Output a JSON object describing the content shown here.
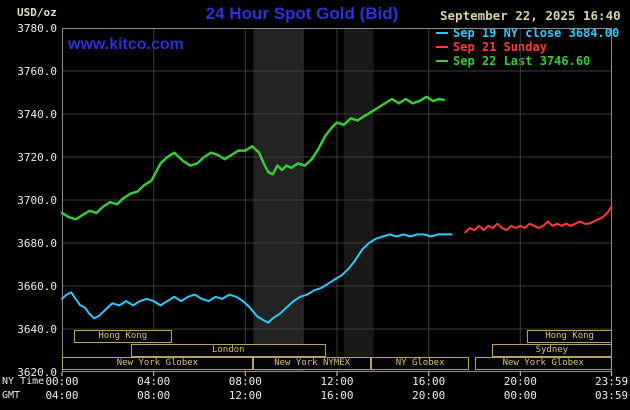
{
  "colors": {
    "background": "#000000",
    "title_blue": "#2b32d8",
    "watermark_blue": "#2b32d8",
    "datetime_tan": "#d9d0a4",
    "axis_text": "#ececec",
    "grid": "#3d3d3d",
    "frame": "#8c8c8c",
    "session_border": "#b4a45c",
    "session_text": "#d6c575",
    "series_cyan": "#2fc8ff",
    "series_red": "#ff3a3a",
    "series_green": "#35cc35"
  },
  "header": {
    "units_label": "USD/oz",
    "title": "24 Hour Spot Gold (Bid)",
    "datetime": "September 22, 2025 16:40",
    "watermark": "www.kitco.com"
  },
  "legend": [
    {
      "label": "Sep 19 NY close 3684.00",
      "color": "#2fc8ff"
    },
    {
      "label": "Sep 21 Sunday",
      "color": "#ff3a3a"
    },
    {
      "label": "Sep 22 Last 3746.60",
      "color": "#35cc35"
    }
  ],
  "axes": {
    "y_tick_labels": [
      "3780.0",
      "3760.0",
      "3740.0",
      "3720.0",
      "3700.0",
      "3680.0",
      "3660.0",
      "3640.0",
      "3620.0"
    ],
    "ny_time_caption": "NY Time",
    "gmt_caption": "GMT",
    "tick_hours": [
      0,
      4,
      8,
      12,
      16,
      20,
      23.983
    ],
    "ny_tick_labels": [
      "00:00",
      "04:00",
      "08:00",
      "12:00",
      "16:00",
      "20:00",
      "23:59"
    ],
    "gmt_tick_labels": [
      "04:00",
      "08:00",
      "12:00",
      "16:00",
      "20:00",
      "00:00",
      "03:59"
    ]
  },
  "sessions": [
    {
      "row": 0,
      "label": "Hong Kong",
      "start": 0.5,
      "end": 4.8
    },
    {
      "row": 0,
      "label": "Hong Kong",
      "start": 20.3,
      "end": 24
    },
    {
      "row": 1,
      "label": "London",
      "start": 3.0,
      "end": 11.5
    },
    {
      "row": 1,
      "label": "Sydney",
      "start": 18.75,
      "end": 24
    },
    {
      "row": 2,
      "label": "New York Globex",
      "start": 0,
      "end": 8.33
    },
    {
      "row": 2,
      "label": "New York NYMEX",
      "start": 8.33,
      "end": 13.5
    },
    {
      "row": 2,
      "label": "NY Globex",
      "start": 13.5,
      "end": 17.75
    },
    {
      "row": 2,
      "label": "New York Globex",
      "start": 18.0,
      "end": 24
    }
  ],
  "chart_data": {
    "type": "line",
    "title": "24 Hour Spot Gold (Bid)",
    "xlabel": "NY Time (hours)",
    "ylabel": "USD/oz",
    "xlim": [
      0,
      24
    ],
    "ylim": [
      3620,
      3780
    ],
    "x_grid_step": 4,
    "y_grid_step": 20,
    "grid": true,
    "legend_position": "top-right",
    "last_values": {
      "sep19_ny_close": 3684.0,
      "sep22_last": 3746.6
    },
    "shaded_bands": [
      {
        "start": 8.35,
        "end": 10.55,
        "color": "#232323"
      },
      {
        "start": 12.3,
        "end": 13.6,
        "color": "#181818"
      }
    ],
    "series": [
      {
        "name": "Sep 19 NY close",
        "color": "#2fc8ff",
        "width": 2,
        "points": [
          [
            0,
            3654
          ],
          [
            0.2,
            3656
          ],
          [
            0.4,
            3657
          ],
          [
            0.6,
            3654
          ],
          [
            0.8,
            3651
          ],
          [
            1,
            3650
          ],
          [
            1.2,
            3647
          ],
          [
            1.4,
            3645
          ],
          [
            1.6,
            3646
          ],
          [
            1.8,
            3648
          ],
          [
            2,
            3650
          ],
          [
            2.2,
            3652
          ],
          [
            2.5,
            3651
          ],
          [
            2.8,
            3653
          ],
          [
            3.1,
            3651
          ],
          [
            3.4,
            3653
          ],
          [
            3.7,
            3654
          ],
          [
            4,
            3653
          ],
          [
            4.3,
            3651
          ],
          [
            4.6,
            3653
          ],
          [
            4.9,
            3655
          ],
          [
            5.2,
            3653
          ],
          [
            5.5,
            3655
          ],
          [
            5.8,
            3656
          ],
          [
            6.1,
            3654
          ],
          [
            6.4,
            3653
          ],
          [
            6.7,
            3655
          ],
          [
            7,
            3654
          ],
          [
            7.3,
            3656
          ],
          [
            7.6,
            3655
          ],
          [
            7.9,
            3653
          ],
          [
            8.2,
            3650
          ],
          [
            8.5,
            3646
          ],
          [
            8.8,
            3644
          ],
          [
            9,
            3643
          ],
          [
            9.2,
            3645
          ],
          [
            9.5,
            3647
          ],
          [
            9.8,
            3650
          ],
          [
            10.1,
            3653
          ],
          [
            10.4,
            3655
          ],
          [
            10.7,
            3656
          ],
          [
            11,
            3658
          ],
          [
            11.3,
            3659
          ],
          [
            11.6,
            3661
          ],
          [
            11.9,
            3663
          ],
          [
            12.2,
            3665
          ],
          [
            12.5,
            3668
          ],
          [
            12.8,
            3672
          ],
          [
            13.1,
            3677
          ],
          [
            13.4,
            3680
          ],
          [
            13.7,
            3682
          ],
          [
            14,
            3683
          ],
          [
            14.3,
            3684
          ],
          [
            14.6,
            3683
          ],
          [
            14.9,
            3684
          ],
          [
            15.2,
            3683
          ],
          [
            15.5,
            3684
          ],
          [
            15.8,
            3684
          ],
          [
            16.1,
            3683
          ],
          [
            16.4,
            3684
          ],
          [
            16.7,
            3684
          ],
          [
            17,
            3684
          ]
        ]
      },
      {
        "name": "Sep 21 Sunday",
        "color": "#ff3a3a",
        "width": 2,
        "points": [
          [
            17.6,
            3685
          ],
          [
            17.8,
            3687
          ],
          [
            18,
            3686
          ],
          [
            18.2,
            3688
          ],
          [
            18.4,
            3686
          ],
          [
            18.6,
            3688
          ],
          [
            18.8,
            3687
          ],
          [
            19,
            3689
          ],
          [
            19.2,
            3687
          ],
          [
            19.4,
            3686
          ],
          [
            19.6,
            3688
          ],
          [
            19.8,
            3687
          ],
          [
            20,
            3688
          ],
          [
            20.2,
            3687
          ],
          [
            20.4,
            3689
          ],
          [
            20.6,
            3688
          ],
          [
            20.8,
            3687
          ],
          [
            21,
            3688
          ],
          [
            21.2,
            3690
          ],
          [
            21.4,
            3688
          ],
          [
            21.6,
            3689
          ],
          [
            21.8,
            3688
          ],
          [
            22,
            3689
          ],
          [
            22.2,
            3688
          ],
          [
            22.4,
            3689
          ],
          [
            22.6,
            3690
          ],
          [
            22.8,
            3689
          ],
          [
            23,
            3689
          ],
          [
            23.2,
            3690
          ],
          [
            23.4,
            3691
          ],
          [
            23.6,
            3692
          ],
          [
            23.8,
            3694
          ],
          [
            23.98,
            3697
          ]
        ]
      },
      {
        "name": "Sep 22",
        "color": "#35cc35",
        "width": 2.5,
        "points": [
          [
            0,
            3694
          ],
          [
            0.3,
            3692
          ],
          [
            0.6,
            3691
          ],
          [
            0.9,
            3693
          ],
          [
            1.2,
            3695
          ],
          [
            1.5,
            3694
          ],
          [
            1.8,
            3697
          ],
          [
            2.1,
            3699
          ],
          [
            2.4,
            3698
          ],
          [
            2.7,
            3701
          ],
          [
            3,
            3703
          ],
          [
            3.3,
            3704
          ],
          [
            3.6,
            3707
          ],
          [
            3.9,
            3709
          ],
          [
            4.1,
            3713
          ],
          [
            4.3,
            3717
          ],
          [
            4.6,
            3720
          ],
          [
            4.9,
            3722
          ],
          [
            5.1,
            3720
          ],
          [
            5.3,
            3718
          ],
          [
            5.6,
            3716
          ],
          [
            5.9,
            3717
          ],
          [
            6.2,
            3720
          ],
          [
            6.5,
            3722
          ],
          [
            6.8,
            3721
          ],
          [
            7.1,
            3719
          ],
          [
            7.4,
            3721
          ],
          [
            7.7,
            3723
          ],
          [
            8,
            3723
          ],
          [
            8.3,
            3725
          ],
          [
            8.6,
            3722
          ],
          [
            8.8,
            3717
          ],
          [
            9,
            3713
          ],
          [
            9.2,
            3712
          ],
          [
            9.4,
            3716
          ],
          [
            9.6,
            3714
          ],
          [
            9.8,
            3716
          ],
          [
            10,
            3715
          ],
          [
            10.3,
            3717
          ],
          [
            10.6,
            3716
          ],
          [
            10.9,
            3719
          ],
          [
            11.2,
            3724
          ],
          [
            11.5,
            3730
          ],
          [
            11.8,
            3734
          ],
          [
            12,
            3736
          ],
          [
            12.3,
            3735
          ],
          [
            12.6,
            3738
          ],
          [
            12.9,
            3737
          ],
          [
            13.2,
            3739
          ],
          [
            13.5,
            3741
          ],
          [
            13.8,
            3743
          ],
          [
            14.1,
            3745
          ],
          [
            14.4,
            3747
          ],
          [
            14.7,
            3745
          ],
          [
            15,
            3747
          ],
          [
            15.3,
            3745
          ],
          [
            15.6,
            3746
          ],
          [
            15.9,
            3748
          ],
          [
            16.2,
            3746
          ],
          [
            16.45,
            3747
          ],
          [
            16.67,
            3746.6
          ]
        ]
      }
    ]
  }
}
